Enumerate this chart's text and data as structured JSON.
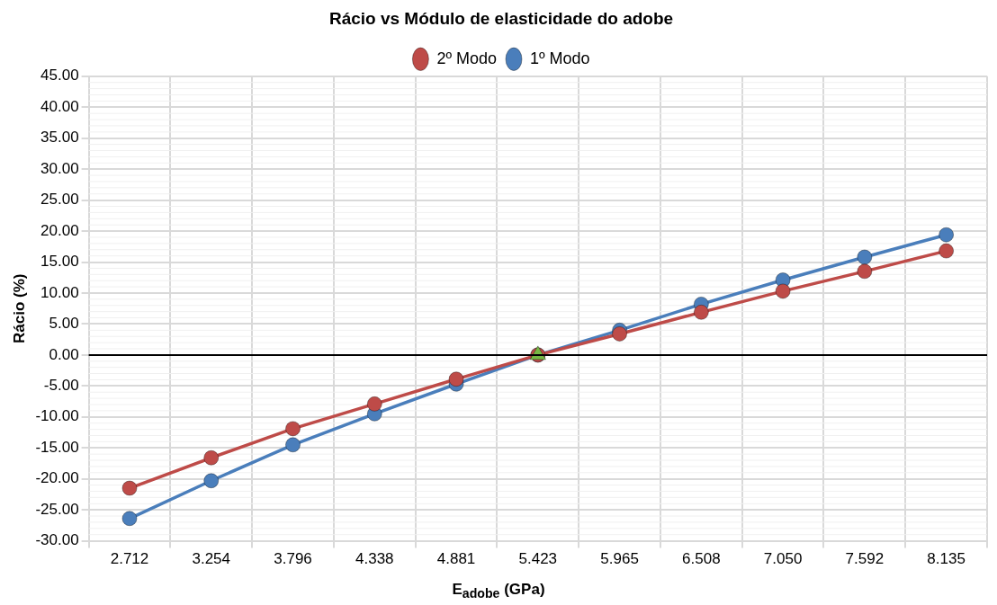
{
  "chart_data": {
    "type": "line",
    "title": "Rácio vs Módulo de elasticidade do adobe",
    "xlabel": "E$_{adobe}$ (GPa)",
    "ylabel": "Rácio (%)",
    "categories": [
      "2.712",
      "3.254",
      "3.796",
      "4.338",
      "4.881",
      "5.423",
      "5.965",
      "6.508",
      "7.050",
      "7.592",
      "8.135"
    ],
    "series": [
      {
        "name": "1º Modo",
        "color": "#4a7ebb",
        "values": [
          -26.4,
          -20.3,
          -14.5,
          -9.5,
          -4.7,
          0,
          4.0,
          8.2,
          12.1,
          15.8,
          19.4
        ]
      },
      {
        "name": "2º Modo",
        "color": "#be4b48",
        "values": [
          -21.5,
          -16.6,
          -11.9,
          -7.9,
          -3.9,
          0,
          3.4,
          6.9,
          10.3,
          13.5,
          16.8
        ]
      },
      {
        "type": "scatter",
        "color": "#77b845",
        "marker": "triangle",
        "values": [
          null,
          null,
          null,
          null,
          null,
          0,
          null,
          null,
          null,
          null,
          null
        ]
      }
    ],
    "ylim": [
      -30,
      45
    ],
    "yticks": [
      {
        "value": -30,
        "label": "-30.00"
      },
      {
        "value": -25,
        "label": "-25.00"
      },
      {
        "value": -20,
        "label": "-20.00"
      },
      {
        "value": -15,
        "label": "-15.00"
      },
      {
        "value": -10,
        "label": "-10.00"
      },
      {
        "value": -5,
        "label": "-5.00"
      },
      {
        "value": 0,
        "label": "0.00"
      },
      {
        "value": 5,
        "label": "5.00"
      },
      {
        "value": 10,
        "label": "10.00"
      },
      {
        "value": 15,
        "label": "15.00"
      },
      {
        "value": 20,
        "label": "20.00"
      },
      {
        "value": 25,
        "label": "25.00"
      },
      {
        "value": 30,
        "label": "30.00"
      },
      {
        "value": 35,
        "label": "35.00"
      },
      {
        "value": 40,
        "label": "40.00"
      },
      {
        "value": 45,
        "label": "45.00"
      }
    ],
    "ref_lines": [
      {
        "axis": "y",
        "value": 0,
        "color": "#000000"
      }
    ],
    "grid": true,
    "legend": "top",
    "marker": "circle",
    "line_style": "solid"
  }
}
